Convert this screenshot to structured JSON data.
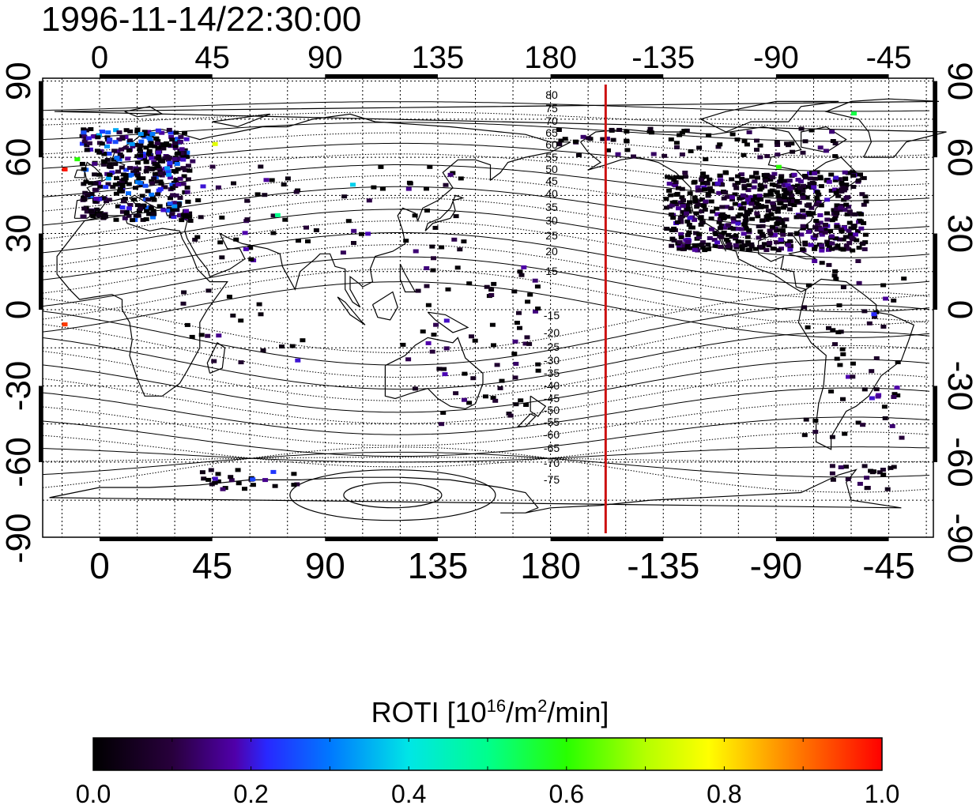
{
  "title": "1996-11-14/22:30:00",
  "map": {
    "lon_tick_labels": [
      "0",
      "45",
      "90",
      "135",
      "180",
      "-135",
      "-90",
      "-45"
    ],
    "lat_tick_labels": [
      "90",
      "60",
      "30",
      "0",
      "-30",
      "-60",
      "-90"
    ],
    "contour_labels_north": [
      "80",
      "75",
      "70",
      "65",
      "60",
      "55",
      "50",
      "45",
      "40",
      "35",
      "30",
      "25",
      "20",
      "15"
    ],
    "contour_labels_south": [
      "-15",
      "-20",
      "-25",
      "-30",
      "-35",
      "-40",
      "-45",
      "-50",
      "-55",
      "-60",
      "-65",
      "-70",
      "-75"
    ],
    "terminator_color": "#cc1111"
  },
  "colorbar": {
    "title_prefix": "ROTI  [10",
    "title_sup1": "16",
    "title_mid": "/m",
    "title_sup2": "2",
    "title_suffix": "/min]",
    "tick_labels": [
      "0.0",
      "0.2",
      "0.4",
      "0.6",
      "0.8",
      "1.0"
    ]
  }
}
